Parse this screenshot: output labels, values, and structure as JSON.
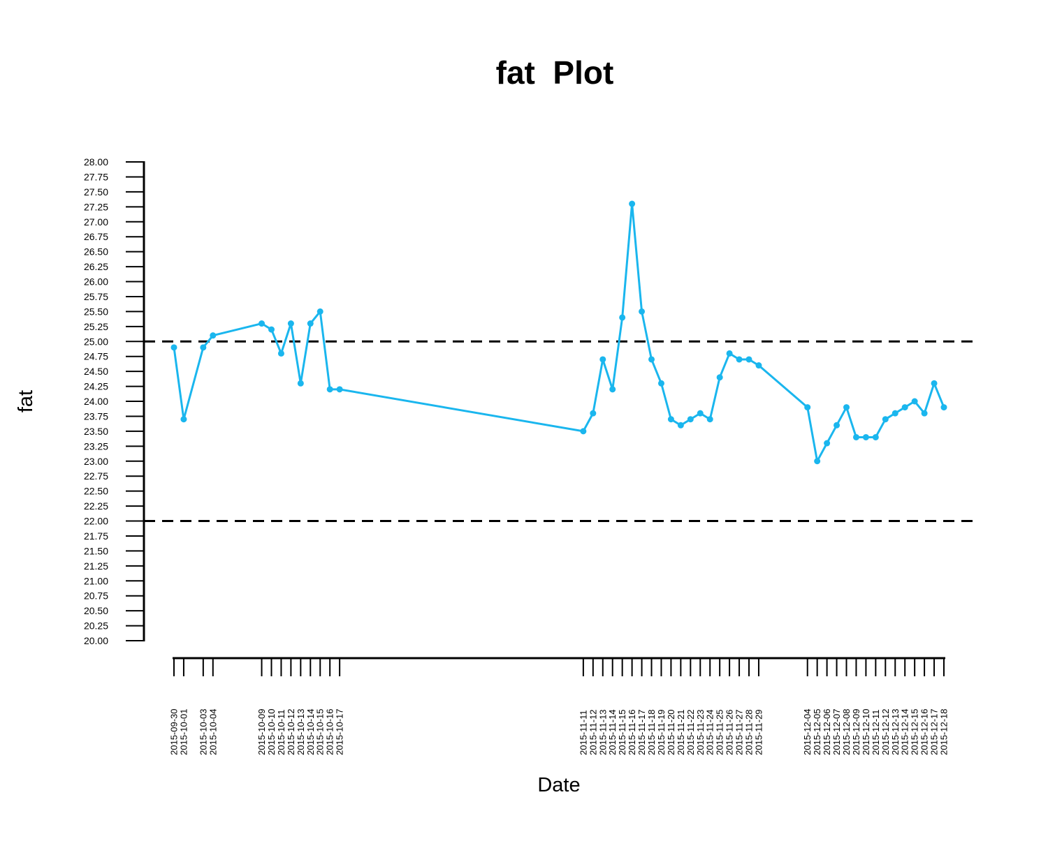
{
  "chart_data": {
    "type": "line",
    "title": "fat  Plot",
    "xlabel": "Date",
    "ylabel": "fat",
    "ylim": [
      20.0,
      28.0
    ],
    "yticks": [
      "20.00",
      "20.25",
      "20.50",
      "20.75",
      "21.00",
      "21.25",
      "21.50",
      "21.75",
      "22.00",
      "22.25",
      "22.50",
      "22.75",
      "23.00",
      "23.25",
      "23.50",
      "23.75",
      "24.00",
      "24.25",
      "24.50",
      "24.75",
      "25.00",
      "25.25",
      "25.50",
      "25.75",
      "26.00",
      "26.25",
      "26.50",
      "26.75",
      "27.00",
      "27.25",
      "27.50",
      "27.75",
      "28.00"
    ],
    "xlim": [
      "2015-09-30",
      "2015-12-18"
    ],
    "reference_lines": [
      {
        "y": 25.0,
        "style": "dashed",
        "color": "#000000"
      },
      {
        "y": 22.0,
        "style": "dashed",
        "color": "#000000"
      }
    ],
    "grid": false,
    "series": [
      {
        "color": "#1ab6ee",
        "points": [
          {
            "x": "2015-09-30",
            "y": 24.9
          },
          {
            "x": "2015-10-01",
            "y": 23.7
          },
          {
            "x": "2015-10-03",
            "y": 24.9
          },
          {
            "x": "2015-10-04",
            "y": 25.1
          },
          {
            "x": "2015-10-09",
            "y": 25.3
          },
          {
            "x": "2015-10-10",
            "y": 25.2
          },
          {
            "x": "2015-10-11",
            "y": 24.8
          },
          {
            "x": "2015-10-12",
            "y": 25.3
          },
          {
            "x": "2015-10-13",
            "y": 24.3
          },
          {
            "x": "2015-10-14",
            "y": 25.3
          },
          {
            "x": "2015-10-15",
            "y": 25.5
          },
          {
            "x": "2015-10-16",
            "y": 24.2
          },
          {
            "x": "2015-10-17",
            "y": 24.2
          },
          {
            "x": "2015-11-11",
            "y": 23.5
          },
          {
            "x": "2015-11-12",
            "y": 23.8
          },
          {
            "x": "2015-11-13",
            "y": 24.7
          },
          {
            "x": "2015-11-14",
            "y": 24.2
          },
          {
            "x": "2015-11-15",
            "y": 25.4
          },
          {
            "x": "2015-11-16",
            "y": 27.3
          },
          {
            "x": "2015-11-17",
            "y": 25.5
          },
          {
            "x": "2015-11-18",
            "y": 24.7
          },
          {
            "x": "2015-11-19",
            "y": 24.3
          },
          {
            "x": "2015-11-20",
            "y": 23.7
          },
          {
            "x": "2015-11-21",
            "y": 23.6
          },
          {
            "x": "2015-11-22",
            "y": 23.7
          },
          {
            "x": "2015-11-23",
            "y": 23.8
          },
          {
            "x": "2015-11-24",
            "y": 23.7
          },
          {
            "x": "2015-11-25",
            "y": 24.4
          },
          {
            "x": "2015-11-26",
            "y": 24.8
          },
          {
            "x": "2015-11-27",
            "y": 24.7
          },
          {
            "x": "2015-11-28",
            "y": 24.7
          },
          {
            "x": "2015-11-29",
            "y": 24.6
          },
          {
            "x": "2015-12-04",
            "y": 23.9
          },
          {
            "x": "2015-12-05",
            "y": 23.0
          },
          {
            "x": "2015-12-06",
            "y": 23.3
          },
          {
            "x": "2015-12-07",
            "y": 23.6
          },
          {
            "x": "2015-12-08",
            "y": 23.9
          },
          {
            "x": "2015-12-09",
            "y": 23.4
          },
          {
            "x": "2015-12-10",
            "y": 23.4
          },
          {
            "x": "2015-12-11",
            "y": 23.4
          },
          {
            "x": "2015-12-12",
            "y": 23.7
          },
          {
            "x": "2015-12-13",
            "y": 23.8
          },
          {
            "x": "2015-12-14",
            "y": 23.9
          },
          {
            "x": "2015-12-15",
            "y": 24.0
          },
          {
            "x": "2015-12-16",
            "y": 23.8
          },
          {
            "x": "2015-12-17",
            "y": 24.3
          },
          {
            "x": "2015-12-18",
            "y": 23.9
          }
        ]
      }
    ]
  }
}
